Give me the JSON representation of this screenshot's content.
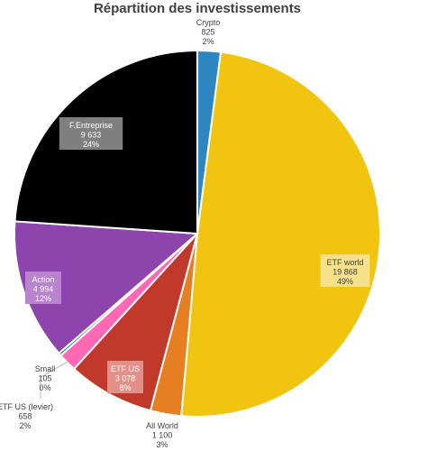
{
  "chart_data": {
    "type": "pie",
    "title": "Répartition des investissements",
    "slices": [
      {
        "name": "Crypto",
        "value": 825,
        "value_label": "825",
        "percent_label": "2%",
        "color": "#2E86C1"
      },
      {
        "name": "ETF world",
        "value": 19868,
        "value_label": "19 868",
        "percent_label": "49%",
        "color": "#F1C40F"
      },
      {
        "name": "All World",
        "value": 1100,
        "value_label": "1 100",
        "percent_label": "3%",
        "color": "#E67E22"
      },
      {
        "name": "ETF US",
        "value": 3078,
        "value_label": "3 078",
        "percent_label": "8%",
        "color": "#C0392B"
      },
      {
        "name": "ETF US (levier)",
        "value": 658,
        "value_label": "658",
        "percent_label": "2%",
        "color": "#FF69B4"
      },
      {
        "name": "Small",
        "value": 105,
        "value_label": "105",
        "percent_label": "0%",
        "color": "#16A085"
      },
      {
        "name": "Action",
        "value": 4994,
        "value_label": "4 994",
        "percent_label": "12%",
        "color": "#8E44AD"
      },
      {
        "name": "F.Entreprise",
        "value": 9633,
        "value_label": "9 633",
        "percent_label": "24%",
        "color": "#000000"
      }
    ],
    "legend": "none"
  }
}
